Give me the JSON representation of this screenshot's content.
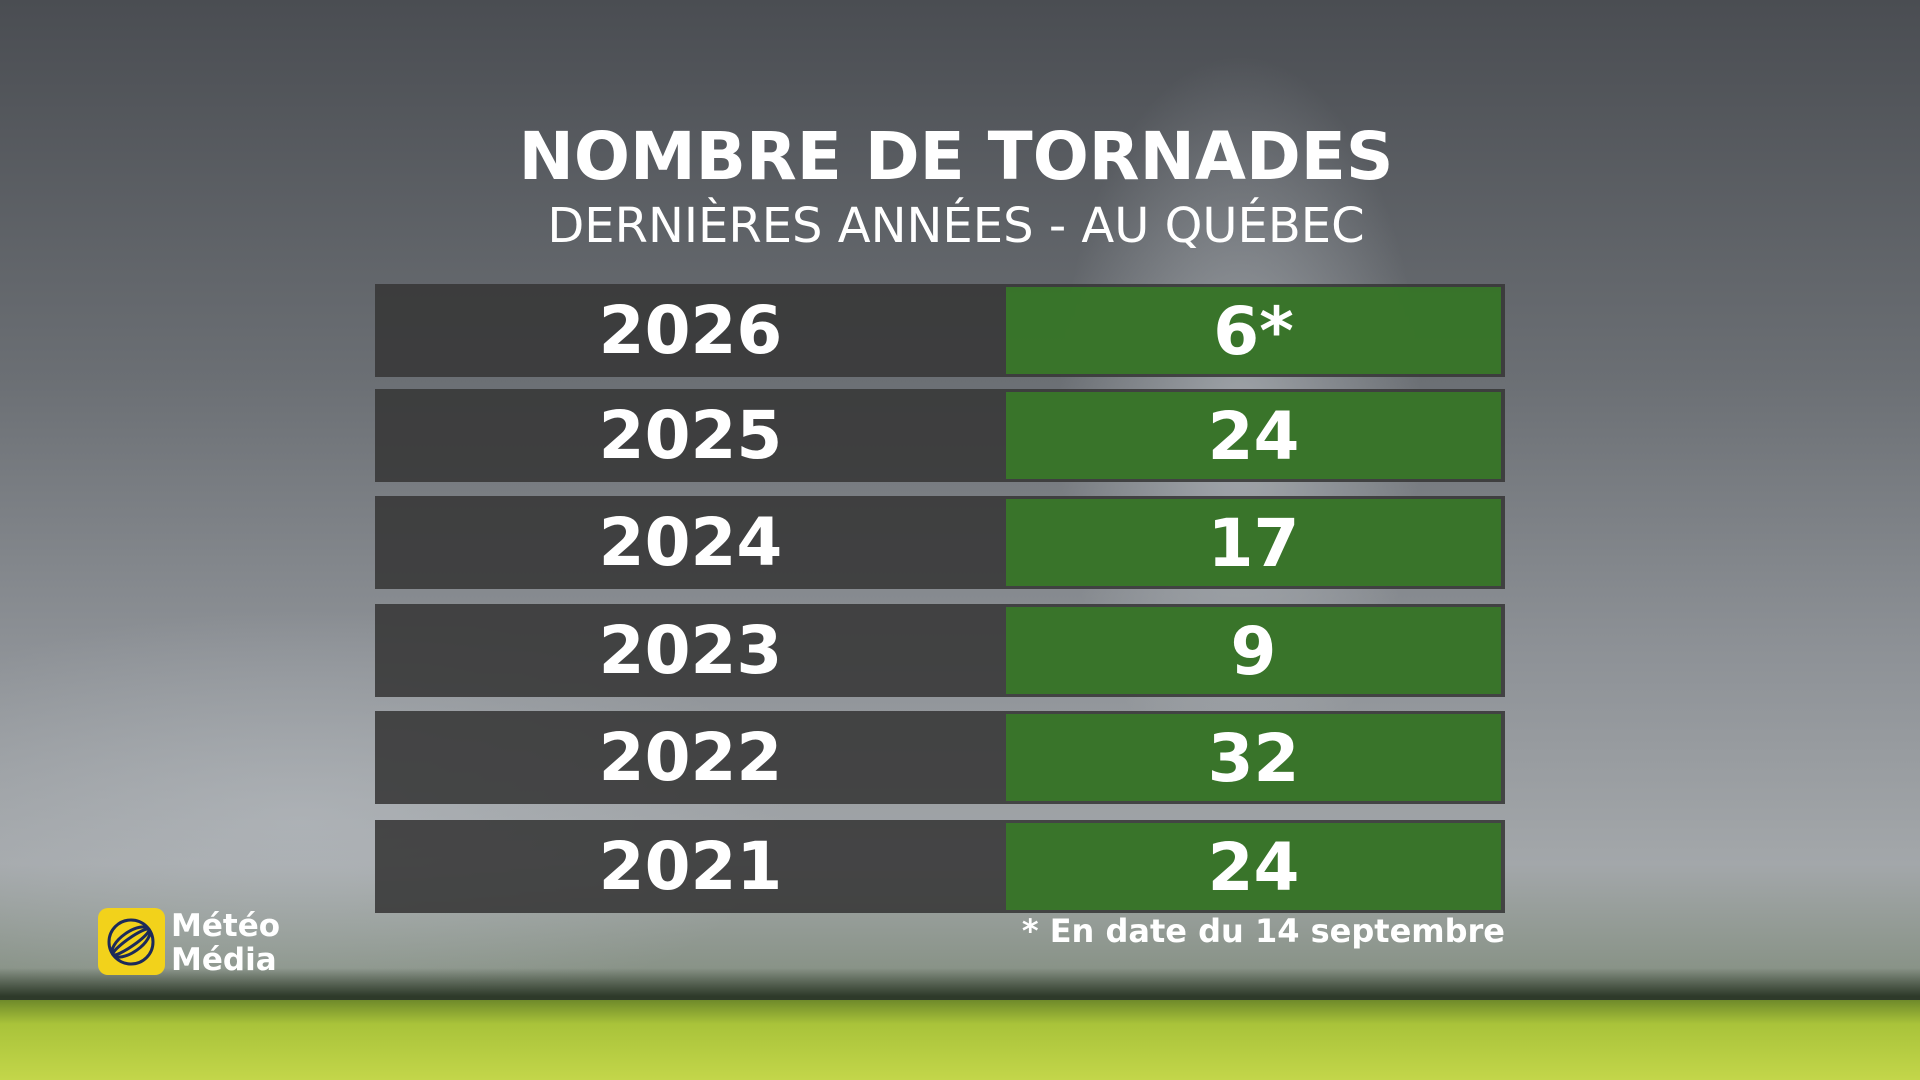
{
  "header": {
    "title": "NOMBRE DE TORNADES",
    "subtitle": "DERNIÈRES ANNÉES - AU QUÉBEC"
  },
  "table": {
    "rows": [
      [
        "2026",
        "6*"
      ],
      [
        "2025",
        "24"
      ],
      [
        "2024",
        "17"
      ],
      [
        "2023",
        "9"
      ],
      [
        "2022",
        "32"
      ],
      [
        "2021",
        "24"
      ]
    ]
  },
  "footnote": "* En date du 14 septembre",
  "logo": {
    "line1": "Météo",
    "line2": "Média"
  }
}
